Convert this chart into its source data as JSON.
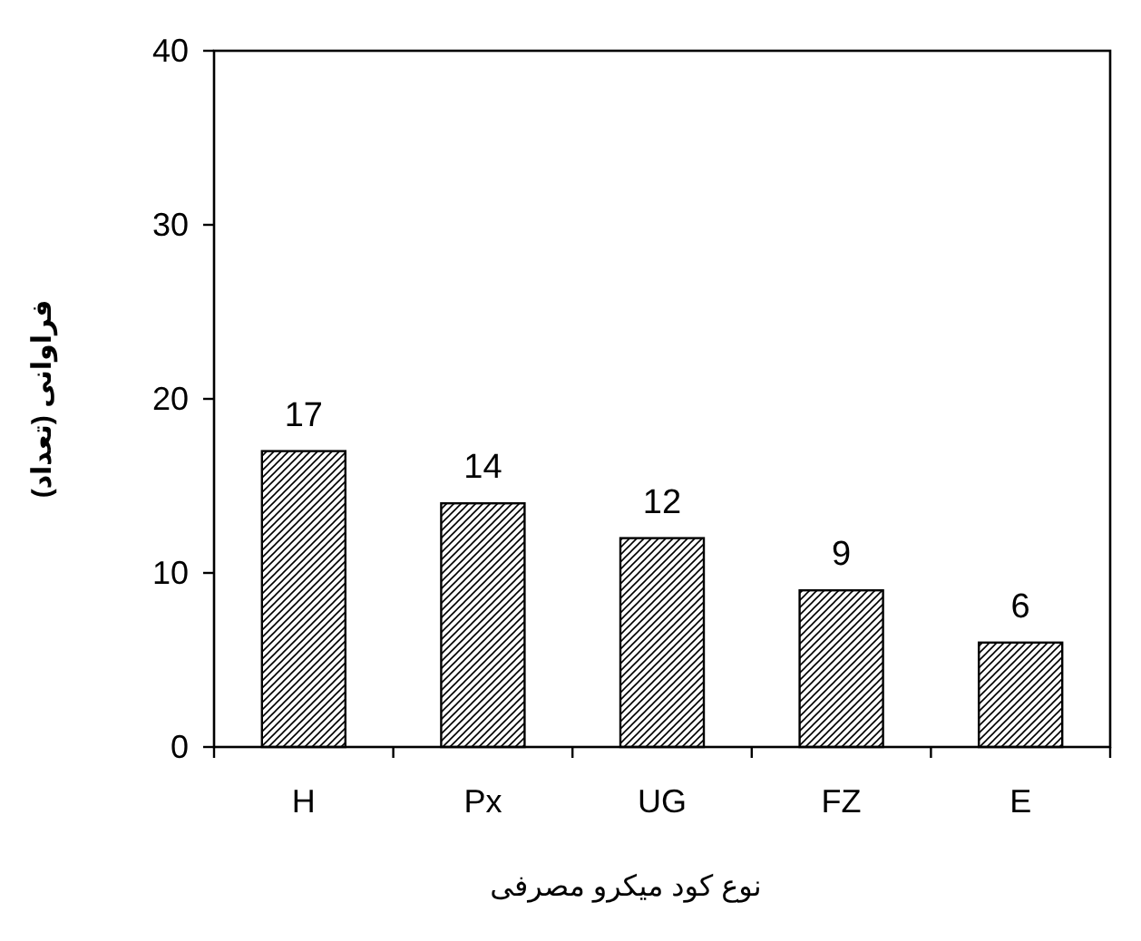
{
  "chart_data": {
    "type": "bar",
    "xlabel": "نوع کود میکرو مصرفی",
    "ylabel": "فراوانی (تعداد)",
    "categories": [
      "H",
      "Px",
      "UG",
      "FZ",
      "E"
    ],
    "values": [
      17,
      14,
      12,
      9,
      6
    ],
    "color": "#000000",
    "ylim": [
      0,
      40
    ],
    "yticks": [
      0,
      10,
      20,
      30,
      40
    ],
    "data_labels": true,
    "grid": false
  }
}
